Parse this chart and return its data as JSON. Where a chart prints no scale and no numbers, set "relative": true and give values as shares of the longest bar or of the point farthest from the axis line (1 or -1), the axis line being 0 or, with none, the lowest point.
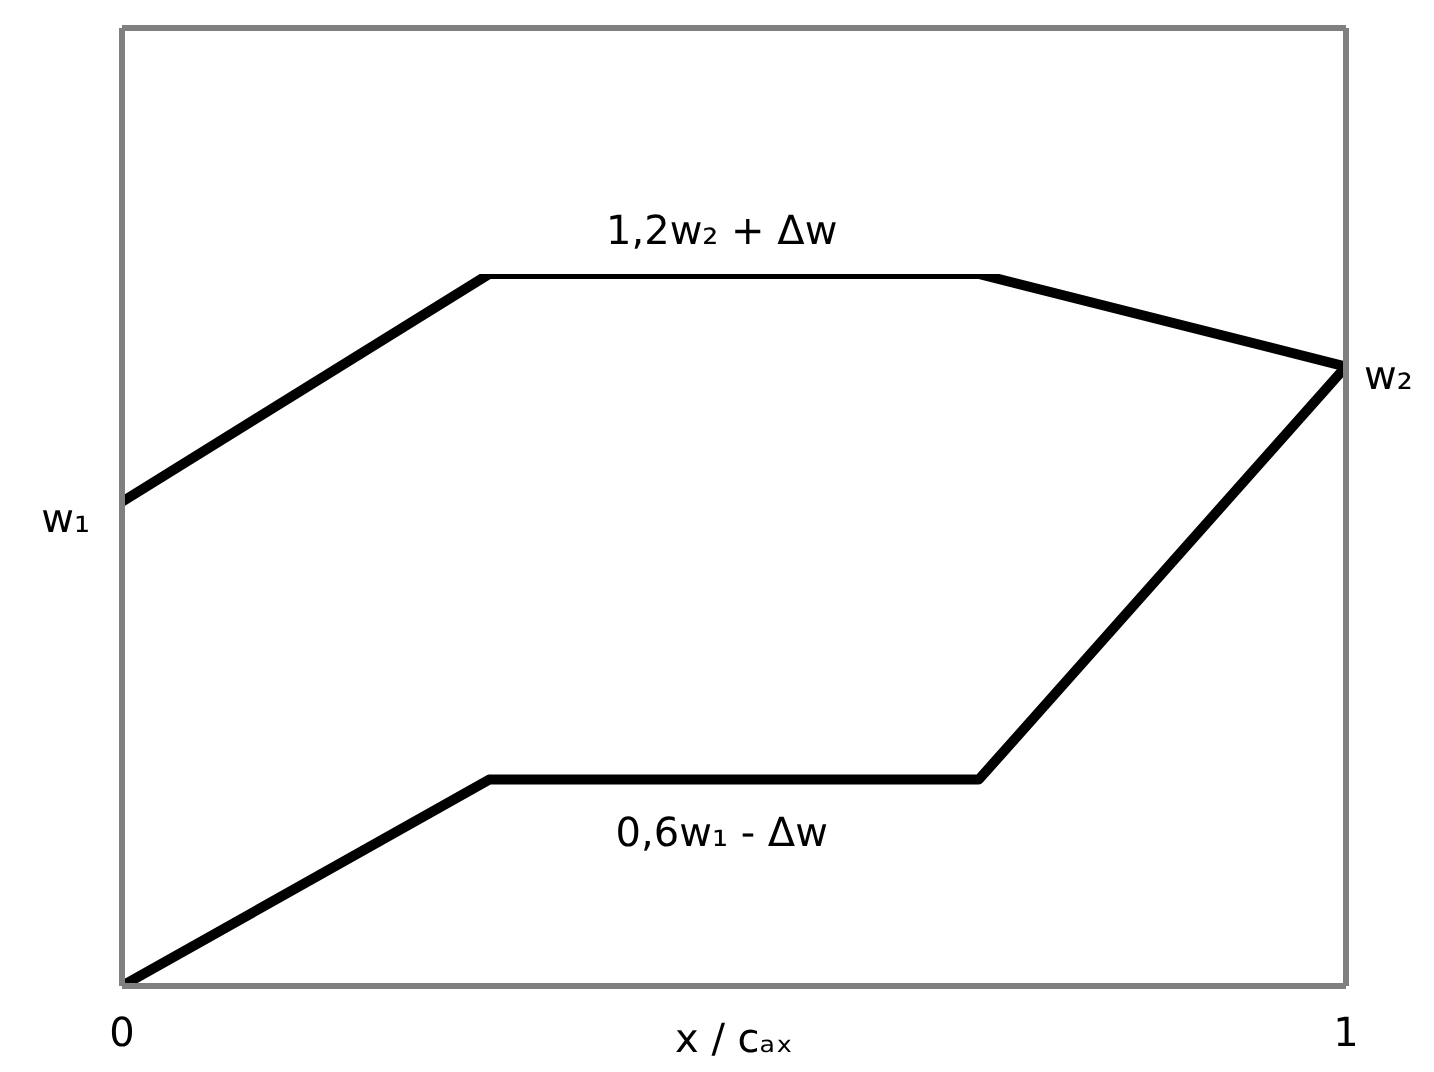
{
  "chart_data": {
    "type": "line",
    "relative": true,
    "xlabel": "x / cₐₓ",
    "x": [
      0,
      0.3,
      0.7,
      1
    ],
    "series": [
      {
        "color": "#000000",
        "values": [
          0.68,
          1,
          1,
          0.87
        ]
      },
      {
        "color": "#000000",
        "values": [
          0,
          0.29,
          0.29,
          0.87
        ]
      }
    ],
    "xlim": [
      0,
      1
    ],
    "xticks": [
      0,
      1
    ],
    "marker": "none",
    "annotations": [
      {
        "text": "1,2w₂ + Δw",
        "x": 0.49,
        "y": 1
      },
      {
        "text": "0,6w₁ - Δw",
        "x": 0.49,
        "y": 0.29
      },
      {
        "text": "w₁",
        "x": 0,
        "y": 0.68
      },
      {
        "text": "w₂",
        "x": 1,
        "y": 0.87
      }
    ]
  }
}
